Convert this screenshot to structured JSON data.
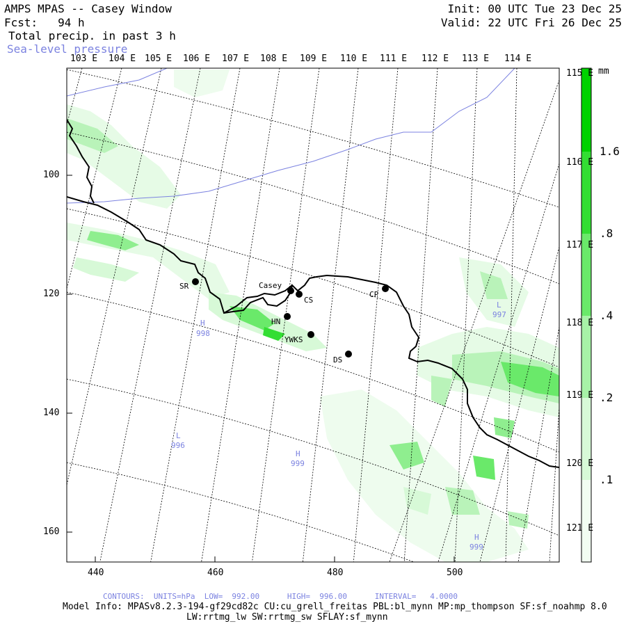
{
  "header": {
    "title": "AMPS MPAS -- Casey Window",
    "forecast": "Fcst:   94 h",
    "field": "Total precip. in past 3 h",
    "overlay": "Sea-level pressure",
    "init": "Init: 00 UTC Tue 23 Dec 25",
    "valid": "Valid: 22 UTC Fri 26 Dec 25"
  },
  "grid": {
    "top_lon_labels": [
      "103 E",
      "104 E",
      "105 E",
      "106 E",
      "107 E",
      "108 E",
      "109 E",
      "110 E",
      "111 E",
      "112 E",
      "113 E",
      "114 E"
    ],
    "right_lon_labels": [
      "115 E",
      "116 E",
      "117 E",
      "118 E",
      "119 E",
      "120 E",
      "121 E"
    ],
    "x_ticks": [
      "440",
      "460",
      "480",
      "500"
    ],
    "y_ticks": [
      "100",
      "120",
      "140",
      "160"
    ]
  },
  "stations": [
    {
      "code": "Casey"
    },
    {
      "code": "CS"
    },
    {
      "code": "CP"
    },
    {
      "code": "SR"
    },
    {
      "code": "HN"
    },
    {
      "code": "YWKS"
    },
    {
      "code": "DS"
    }
  ],
  "pressure_centers": [
    {
      "type": "L",
      "value": "997"
    },
    {
      "type": "H",
      "value": "998"
    },
    {
      "type": "L",
      "value": "996"
    },
    {
      "type": "H",
      "value": "999"
    },
    {
      "type": "H",
      "value": "999"
    }
  ],
  "colorbar": {
    "unit": "mm",
    "labels": [
      "1.6",
      ".8",
      ".4",
      ".2",
      ".1"
    ],
    "colors": [
      "#f2fdf2",
      "#d7f9d7",
      "#a7f2a7",
      "#6ae96a",
      "#33de33",
      "#00d200"
    ]
  },
  "footer": {
    "contours": "CONTOURS:  UNITS=hPa  LOW=  992.00      HIGH=  996.00      INTERVAL=   4.0000",
    "model_info": "Model Info: MPASv8.2.3-194-gf29cd82c CU:cu_grell_freitas PBL:bl_mynn MP:mp_thompson SF:sf_noahmp 8.0",
    "model_info2": "LW:rrtmg_lw SW:rrtmg_sw SFLAY:sf_mynn"
  },
  "colors": {
    "isobar": "#7b82e0",
    "coast": "#000000"
  }
}
